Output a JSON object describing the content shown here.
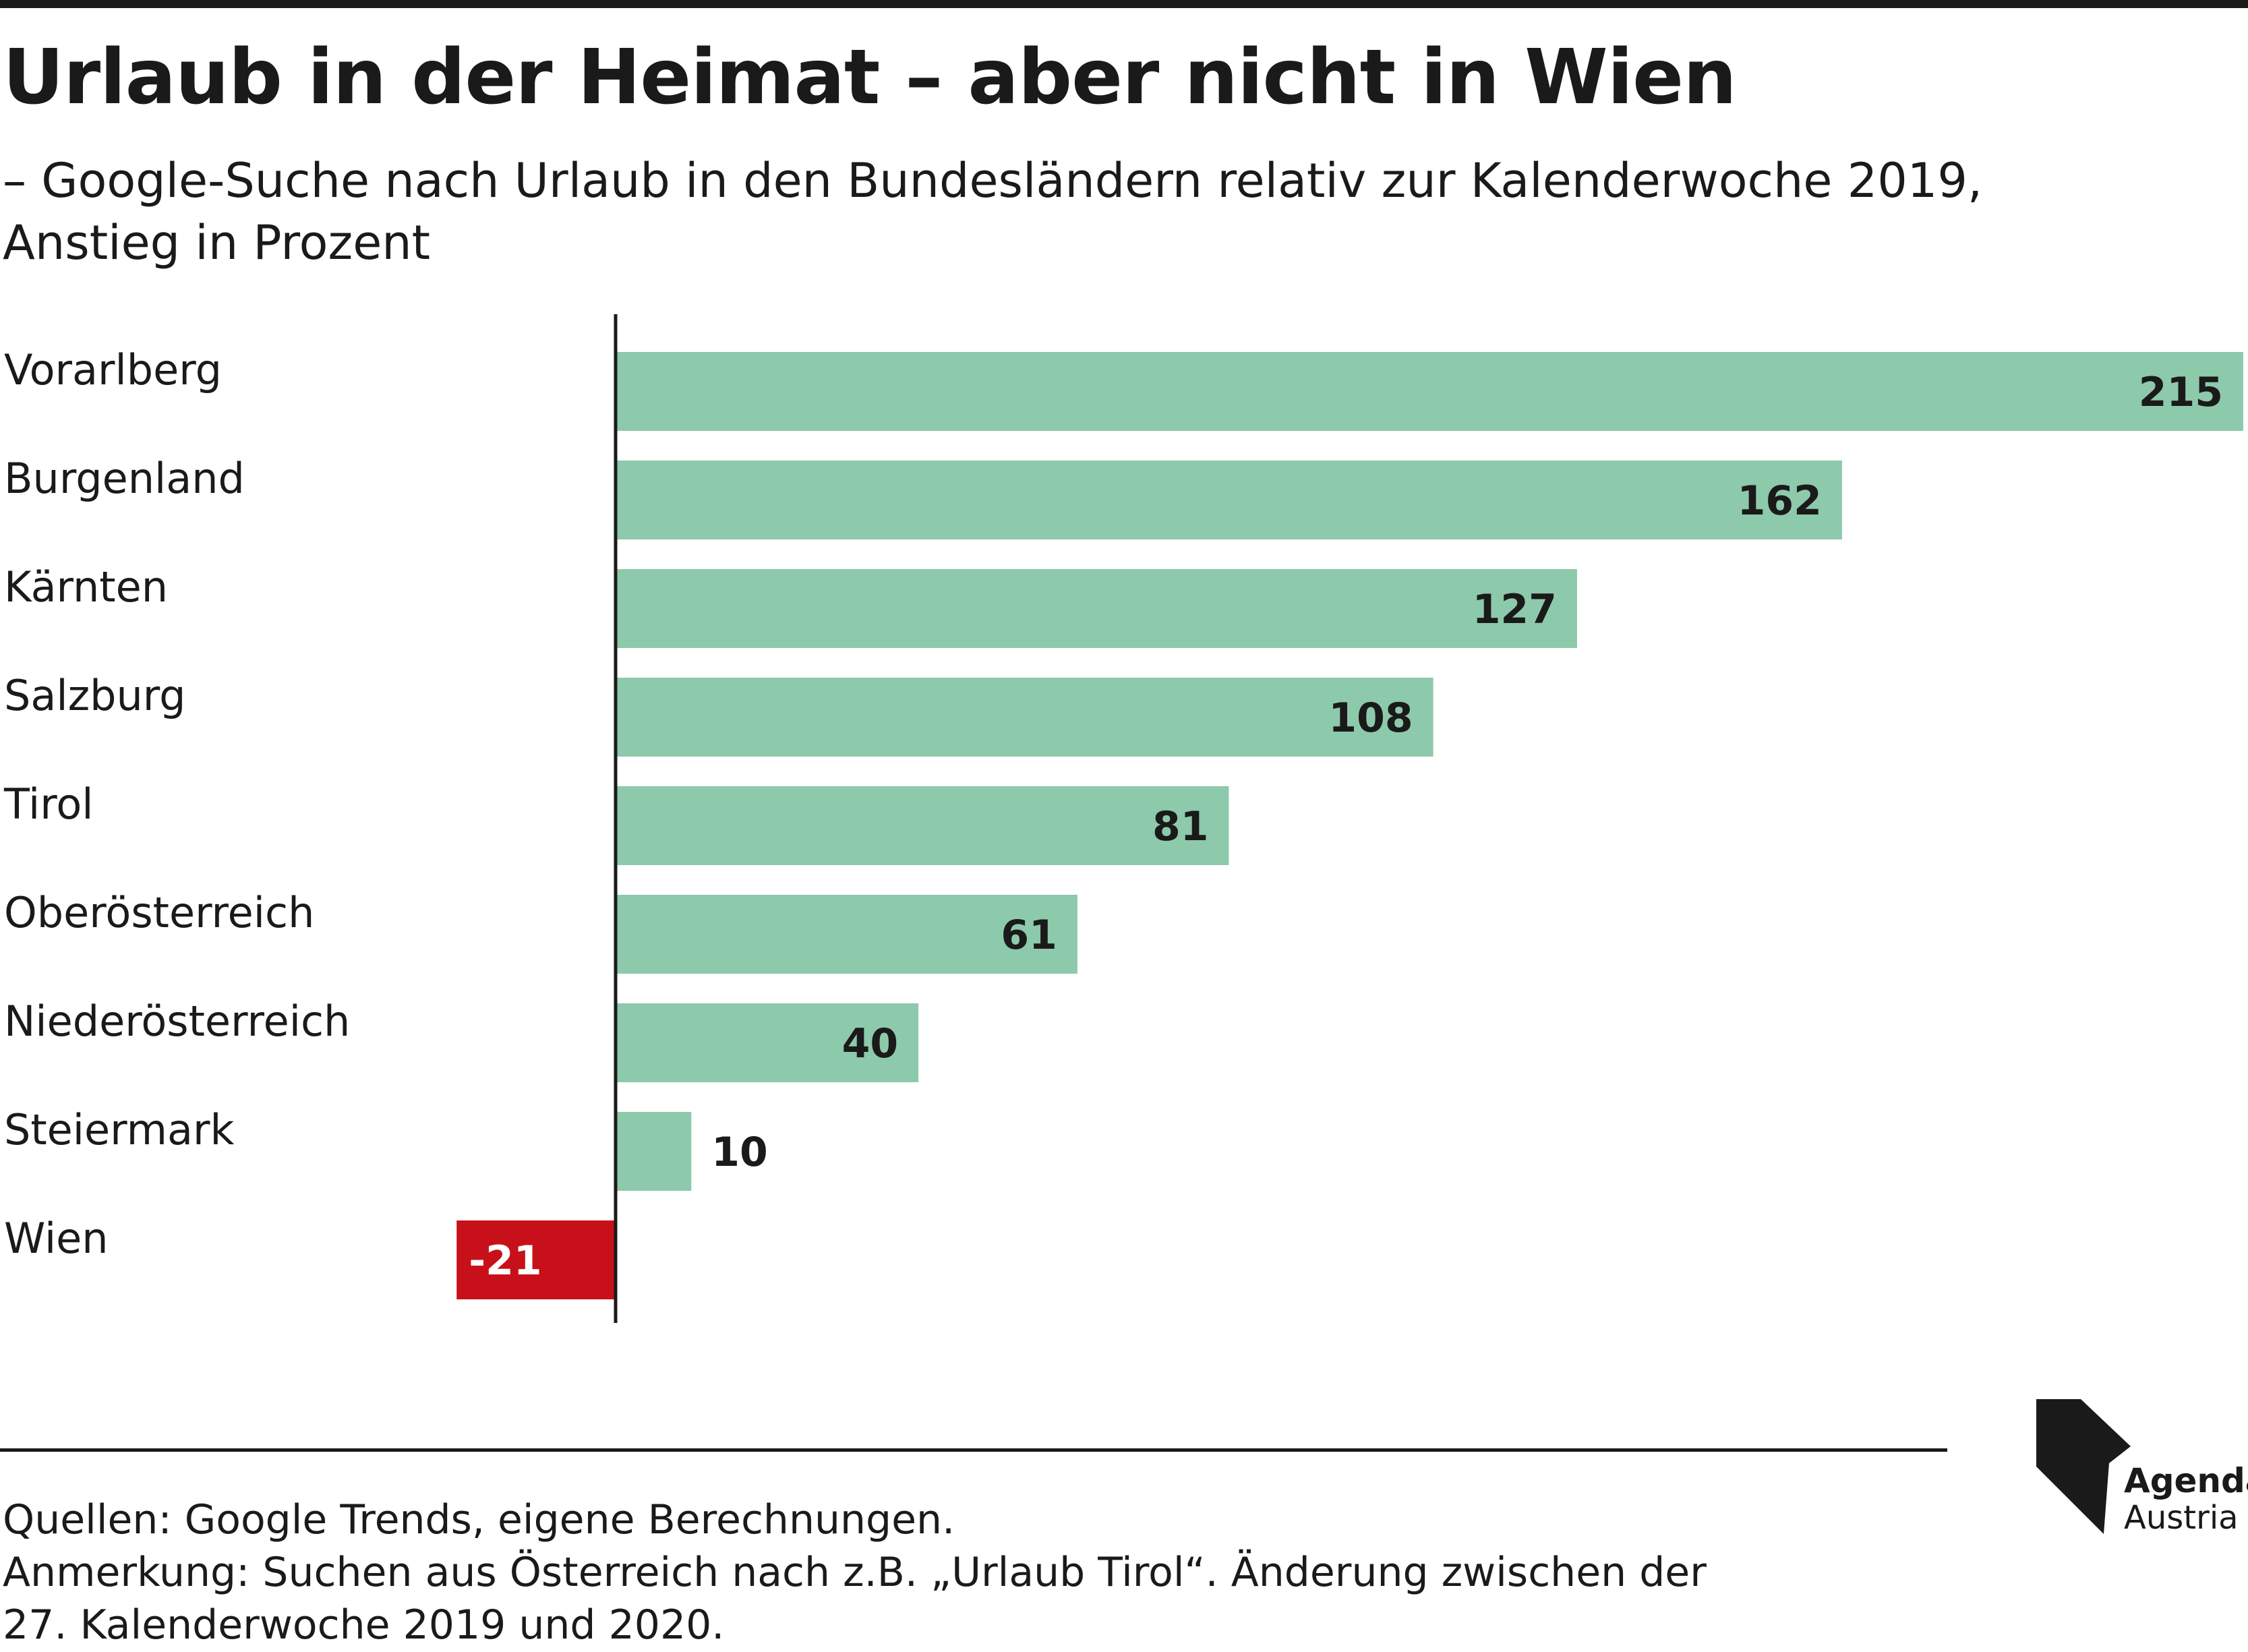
{
  "title": "Urlaub in der Heimat – aber nicht in Wien",
  "subtitle_line1": "– Google-Suche nach Urlaub in den Bundesländern relativ zur Kalenderwoche 2019,",
  "subtitle_line2": "Anstieg in Prozent",
  "footer": {
    "sources": "Quellen: Google Trends, eigene Berechnungen.",
    "note_line1": "Anmerkung: Suchen aus Österreich nach z.B. „Urlaub Tirol“. Änderung zwischen der",
    "note_line2": "27. Kalenderwoche 2019 und 2020."
  },
  "logo": {
    "line1": "Agenda",
    "line2": "Austria",
    "icon": "agenda-austria-logo-icon"
  },
  "colors": {
    "positive": "#8dc9ab",
    "negative": "#c8101a",
    "text": "#1a1a1a"
  },
  "chart_data": {
    "type": "bar",
    "orientation": "horizontal",
    "categories": [
      "Vorarlberg",
      "Burgenland",
      "Kärnten",
      "Salzburg",
      "Tirol",
      "Oberösterreich",
      "Niederösterreich",
      "Steiermark",
      "Wien"
    ],
    "values": [
      215,
      162,
      127,
      108,
      81,
      61,
      40,
      10,
      -21
    ],
    "data_labels": [
      "215",
      "162",
      "127",
      "108",
      "81",
      "61",
      "40",
      "10",
      "-21"
    ],
    "xlim": [
      -21,
      215
    ],
    "grid": false,
    "legend": "none"
  }
}
